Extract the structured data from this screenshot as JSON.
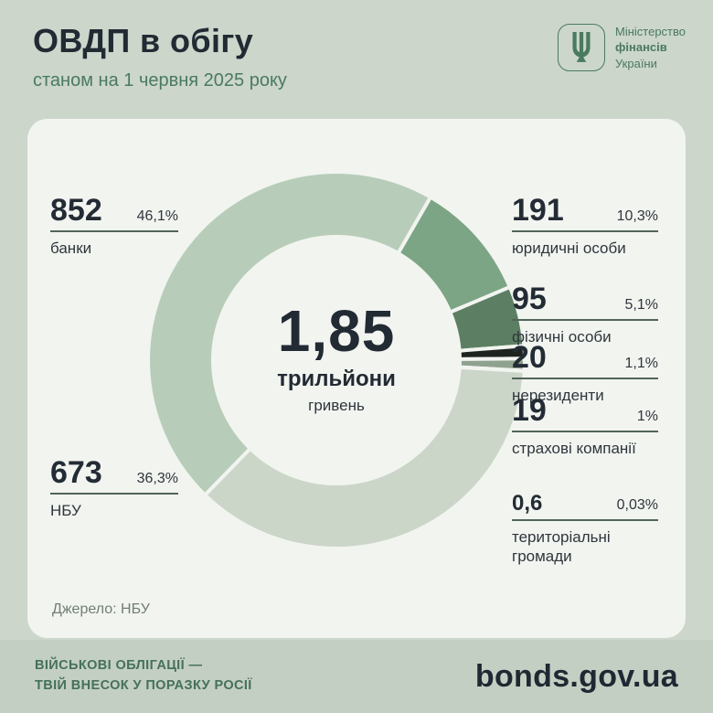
{
  "header": {
    "title": "ОВДП в обігу",
    "subtitle": "станом на 1 червня 2025 року",
    "ministry": {
      "line1": "Міністерство",
      "line2": "фінансів",
      "line3": "України"
    }
  },
  "chart_data": {
    "type": "pie",
    "variant": "donut",
    "title": "ОВДП в обігу станом на 1 червня 2025 року",
    "center": {
      "value": "1,85",
      "unit": "трильйони",
      "currency": "гривень"
    },
    "start_angle": 30,
    "legend_position": "callouts",
    "slices": [
      {
        "id": "legal-entities",
        "label": "юридичні особи",
        "value": 191,
        "value_display": "191",
        "pct": "10,3%",
        "color": "#7ca585"
      },
      {
        "id": "individuals",
        "label": "фізичні особи",
        "value": 95,
        "value_display": "95",
        "pct": "5,1%",
        "color": "#5c7f63"
      },
      {
        "id": "non-residents",
        "label": "нерезиденти",
        "value": 20,
        "value_display": "20",
        "pct": "1,1%",
        "color": "#1d231f"
      },
      {
        "id": "insurance-companies",
        "label": "страхові компанії",
        "value": 19,
        "value_display": "19",
        "pct": "1%",
        "color": "#8ea28f"
      },
      {
        "id": "territorial-communities",
        "label": "територіальні громади",
        "value": 0.6,
        "value_display": "0,6",
        "pct": "0,03%",
        "color": "#3f5a4a"
      },
      {
        "id": "nbu",
        "label": "НБУ",
        "value": 673,
        "value_display": "673",
        "pct": "36,3%",
        "color": "#cbd6c9"
      },
      {
        "id": "banks",
        "label": "банки",
        "value": 852,
        "value_display": "852",
        "pct": "46,1%",
        "color": "#b7cdb9"
      }
    ]
  },
  "source": "Джерело: НБУ",
  "footer": {
    "slogan_line1": "ВІЙСЬКОВІ ОБЛІГАЦІЇ —",
    "slogan_line2": "ТВІЙ ВНЕСОК У ПОРАЗКУ РОСІЇ",
    "site": "bonds.gov.ua"
  },
  "colors": {
    "background": "#ccd6cb",
    "card": "#f2f4f0",
    "accent_green": "#4a7a5f",
    "dark_text": "#222b33",
    "footer_bg": "#c4cfc3",
    "callout_line": "#51655a"
  }
}
